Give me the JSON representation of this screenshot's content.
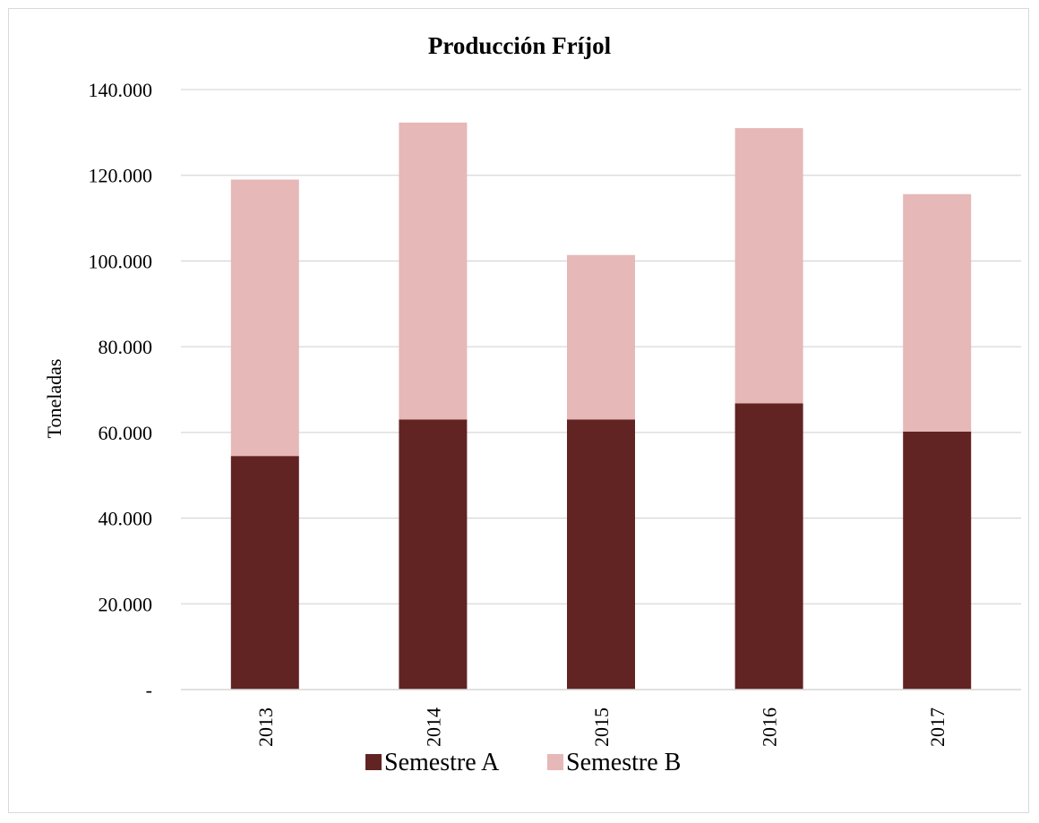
{
  "chart_data": {
    "type": "bar",
    "stacked": true,
    "title": "Producción Fríjol",
    "xlabel": "",
    "ylabel": "Toneladas",
    "categories": [
      "2013",
      "2014",
      "2015",
      "2016",
      "2017"
    ],
    "series": [
      {
        "name": "Semestre A",
        "values": [
          54500,
          63000,
          63000,
          66800,
          60200
        ],
        "color": "#622323"
      },
      {
        "name": "Semestre B",
        "values": [
          64500,
          69300,
          38400,
          64200,
          55400
        ],
        "color": "#e6b8b7"
      }
    ],
    "ylim": [
      0,
      140000
    ],
    "yticks": [
      {
        "value": 0,
        "label": "-"
      },
      {
        "value": 20000,
        "label": "20.000"
      },
      {
        "value": 40000,
        "label": "40.000"
      },
      {
        "value": 60000,
        "label": "60.000"
      },
      {
        "value": 80000,
        "label": "80.000"
      },
      {
        "value": 100000,
        "label": "100.000"
      },
      {
        "value": 120000,
        "label": "120.000"
      },
      {
        "value": 140000,
        "label": "140.000"
      }
    ],
    "grid": true,
    "legend": "bottom",
    "gridline_color": "#d9d9d9"
  }
}
